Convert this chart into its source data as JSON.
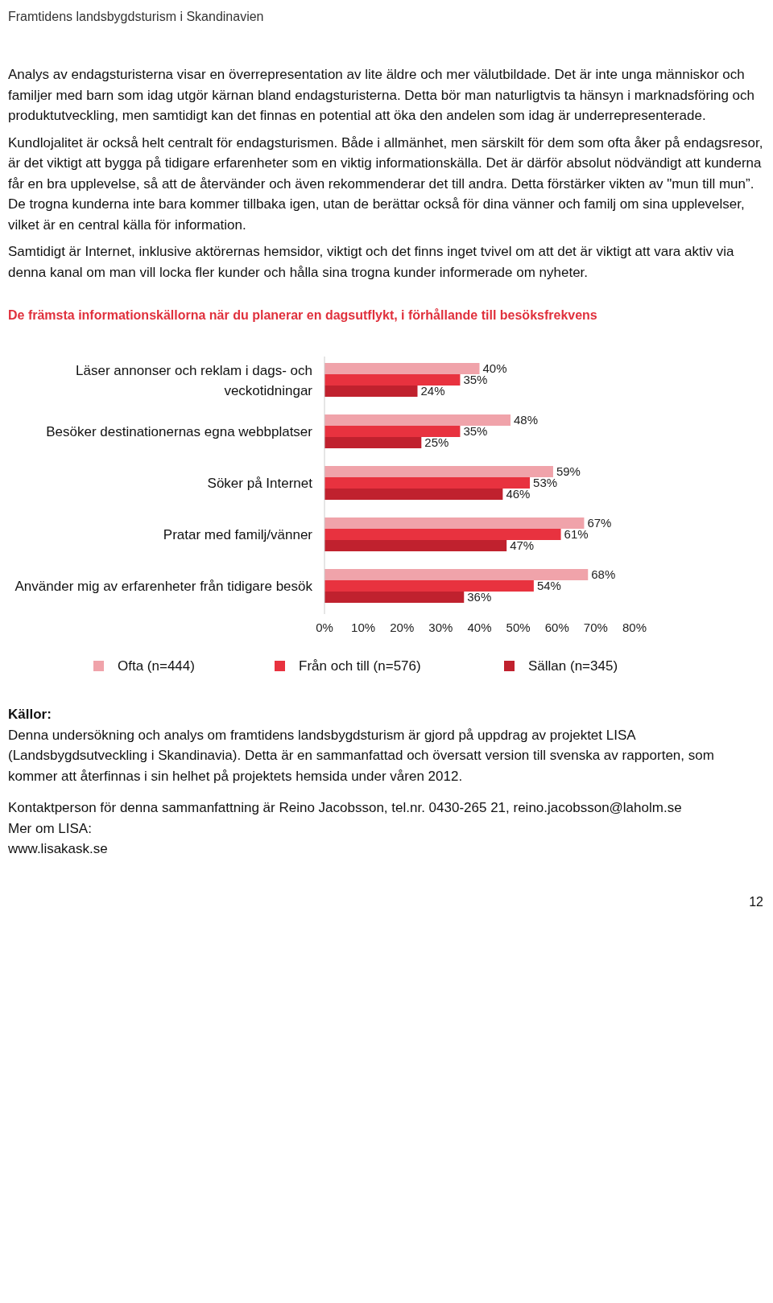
{
  "chart_data": {
    "type": "bar",
    "orientation": "horizontal",
    "title": "De främsta informationskällorna när du planerar en dagsutflykt, i förhållande till besöksfrekvens",
    "categories": [
      "Läser annonser och reklam i dags- och veckotidningar",
      "Besöker destinationernas egna webbplatser",
      "Söker på Internet",
      "Pratar med familj/vänner",
      "Använder mig av erfarenheter från tidigare besök"
    ],
    "series": [
      {
        "name": "Ofta (n=444)",
        "color": "#f0a3aa",
        "values": [
          40,
          48,
          59,
          67,
          68
        ],
        "value_labels": [
          "40%",
          "48%",
          "59%",
          "67%",
          "68%"
        ]
      },
      {
        "name": "Från och till (n=576)",
        "color": "#e8323f",
        "values": [
          35,
          35,
          53,
          61,
          54
        ],
        "value_labels": [
          "35%",
          "35%",
          "53%",
          "61%",
          "54%"
        ]
      },
      {
        "name": "Sällan (n=345)",
        "color": "#c0212e",
        "values": [
          24,
          25,
          46,
          47,
          36
        ],
        "value_labels": [
          "24%",
          "25%",
          "46%",
          "47%",
          "36%"
        ]
      }
    ],
    "xlim": [
      0,
      80
    ],
    "xticks": [
      {
        "value": 0,
        "label": "0%"
      },
      {
        "value": 10,
        "label": "10%"
      },
      {
        "value": 20,
        "label": "20%"
      },
      {
        "value": 30,
        "label": "30%"
      },
      {
        "value": 40,
        "label": "40%"
      },
      {
        "value": 50,
        "label": "50%"
      },
      {
        "value": 60,
        "label": "60%"
      },
      {
        "value": 70,
        "label": "70%"
      },
      {
        "value": 80,
        "label": "80%"
      }
    ],
    "legend": "bottom",
    "annotations": [
      "Framtidens landsbygdsturism i Skandinavien",
      "Analys av endagsturisterna visar en överrepresentation av lite äldre och mer välutbildade. Det är inte unga människor och familjer med barn som idag utgör kärnan bland endagsturisterna. Detta bör man naturligtvis ta hänsyn i marknadsföring och produktutveckling, men samtidigt kan det finnas en potential att öka den andelen som idag är underrepresenterade.",
      "Kundlojalitet är också helt centralt för endagsturismen. Både i allmänhet, men särskilt för dem som ofta åker på endagsresor, är det viktigt att bygga på tidigare erfarenheter som en viktig informationskälla. Det är därför absolut nödvändigt att kunderna får en bra upplevelse, så att de återvänder och även rekommenderar det till andra. Detta förstärker vikten av \"mun till mun”. De trogna kunderna inte bara kommer tillbaka igen, utan de berättar också för dina vänner och familj om sina upplevelser, vilket är en central källa för information.",
      "Samtidigt är Internet, inklusive aktörernas hemsidor, viktigt och det finns inget tvivel om att det är viktigt att vara aktiv via denna kanal om man vill locka fler kunder och hålla sina trogna kunder informerade om nyheter.",
      "Källor:",
      "Denna undersökning och analys om framtidens landsbygdsturism är gjord på uppdrag av projektet LISA (Landsbygdsutveckling i Skandinavia). Detta är en sammanfattad och översatt version till svenska av rapporten, som kommer att återfinnas i sin helhet på projektets hemsida under våren 2012.",
      "Kontaktperson för denna sammanfattning är Reino Jacobsson, tel.nr. 0430-265 21, reino.jacobsson@laholm.se",
      "Mer om LISA:",
      "www.lisakask.se",
      "12"
    ]
  }
}
